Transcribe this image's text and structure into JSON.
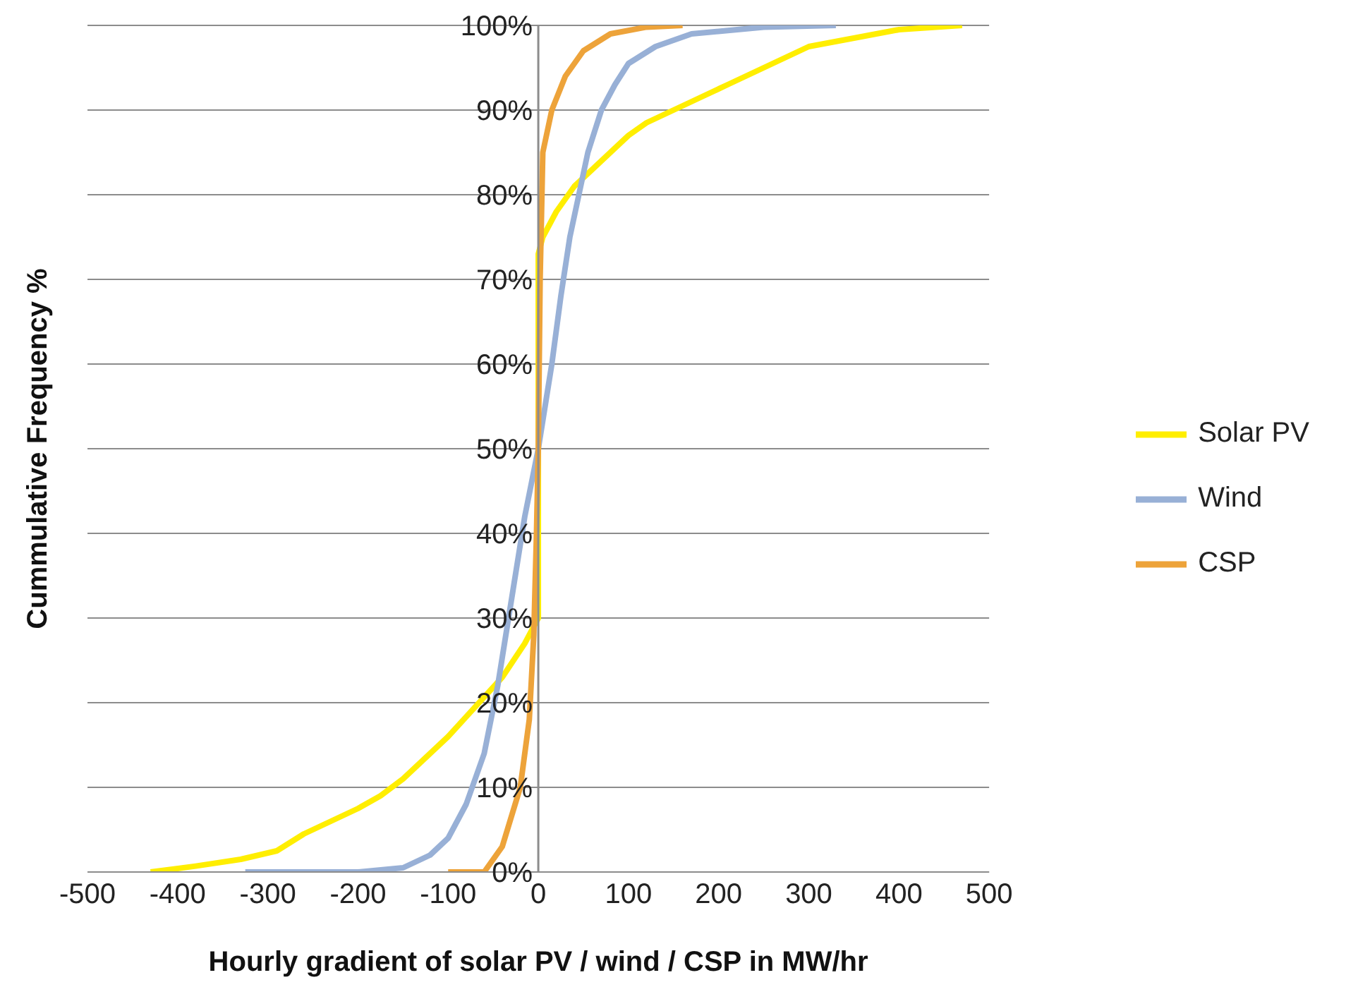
{
  "chart_data": {
    "type": "line",
    "xlabel": "Hourly gradient of solar PV / wind / CSP in MW/hr",
    "ylabel": "Cummulative Frequency %",
    "xlim": [
      -500,
      500
    ],
    "xticks": [
      -500,
      -400,
      -300,
      -200,
      -100,
      0,
      100,
      200,
      300,
      400,
      500
    ],
    "ylim": [
      0,
      100
    ],
    "yticks": [
      {
        "value": 0,
        "label": "0%"
      },
      {
        "value": 10,
        "label": "10%"
      },
      {
        "value": 20,
        "label": "20%"
      },
      {
        "value": 30,
        "label": "30%"
      },
      {
        "value": 40,
        "label": "40%"
      },
      {
        "value": 50,
        "label": "50%"
      },
      {
        "value": 60,
        "label": "60%"
      },
      {
        "value": 70,
        "label": "70%"
      },
      {
        "value": 80,
        "label": "80%"
      },
      {
        "value": 90,
        "label": "90%"
      },
      {
        "value": 100,
        "label": "100%"
      }
    ],
    "grid": "y",
    "legend": "right",
    "marker": "none",
    "line_style": "solid",
    "series": [
      {
        "name": "Solar PV",
        "color": "#ffee00",
        "x": [
          -430,
          -380,
          -330,
          -290,
          -260,
          -230,
          -200,
          -175,
          -150,
          -130,
          -100,
          -70,
          -40,
          -15,
          0,
          0,
          5,
          20,
          40,
          60,
          80,
          100,
          120,
          150,
          180,
          210,
          240,
          270,
          300,
          350,
          400,
          470
        ],
        "values": [
          0,
          0.7,
          1.5,
          2.5,
          4.5,
          6,
          7.5,
          9,
          11,
          13,
          16,
          19.5,
          23,
          27,
          30,
          73,
          75,
          78,
          81,
          83,
          85,
          87,
          88.5,
          90,
          91.5,
          93,
          94.5,
          96,
          97.5,
          98.5,
          99.5,
          100
        ]
      },
      {
        "name": "Wind",
        "color": "#98b0d6",
        "x": [
          -325,
          -200,
          -150,
          -120,
          -100,
          -80,
          -60,
          -45,
          -30,
          -15,
          0,
          15,
          25,
          35,
          45,
          55,
          70,
          85,
          100,
          130,
          170,
          250,
          330
        ],
        "values": [
          0,
          0,
          0.5,
          2,
          4,
          8,
          14,
          22,
          32,
          42,
          50,
          60,
          68,
          75,
          80,
          85,
          90,
          93,
          95.5,
          97.5,
          99,
          99.8,
          100
        ]
      },
      {
        "name": "CSP",
        "color": "#eda33a",
        "x": [
          -100,
          -60,
          -40,
          -20,
          -10,
          -5,
          -2,
          0,
          2,
          5,
          15,
          30,
          50,
          80,
          120,
          160
        ],
        "values": [
          0,
          0,
          3,
          10,
          18,
          28,
          40,
          50,
          70,
          85,
          90,
          94,
          97,
          99,
          99.8,
          100
        ]
      }
    ]
  }
}
